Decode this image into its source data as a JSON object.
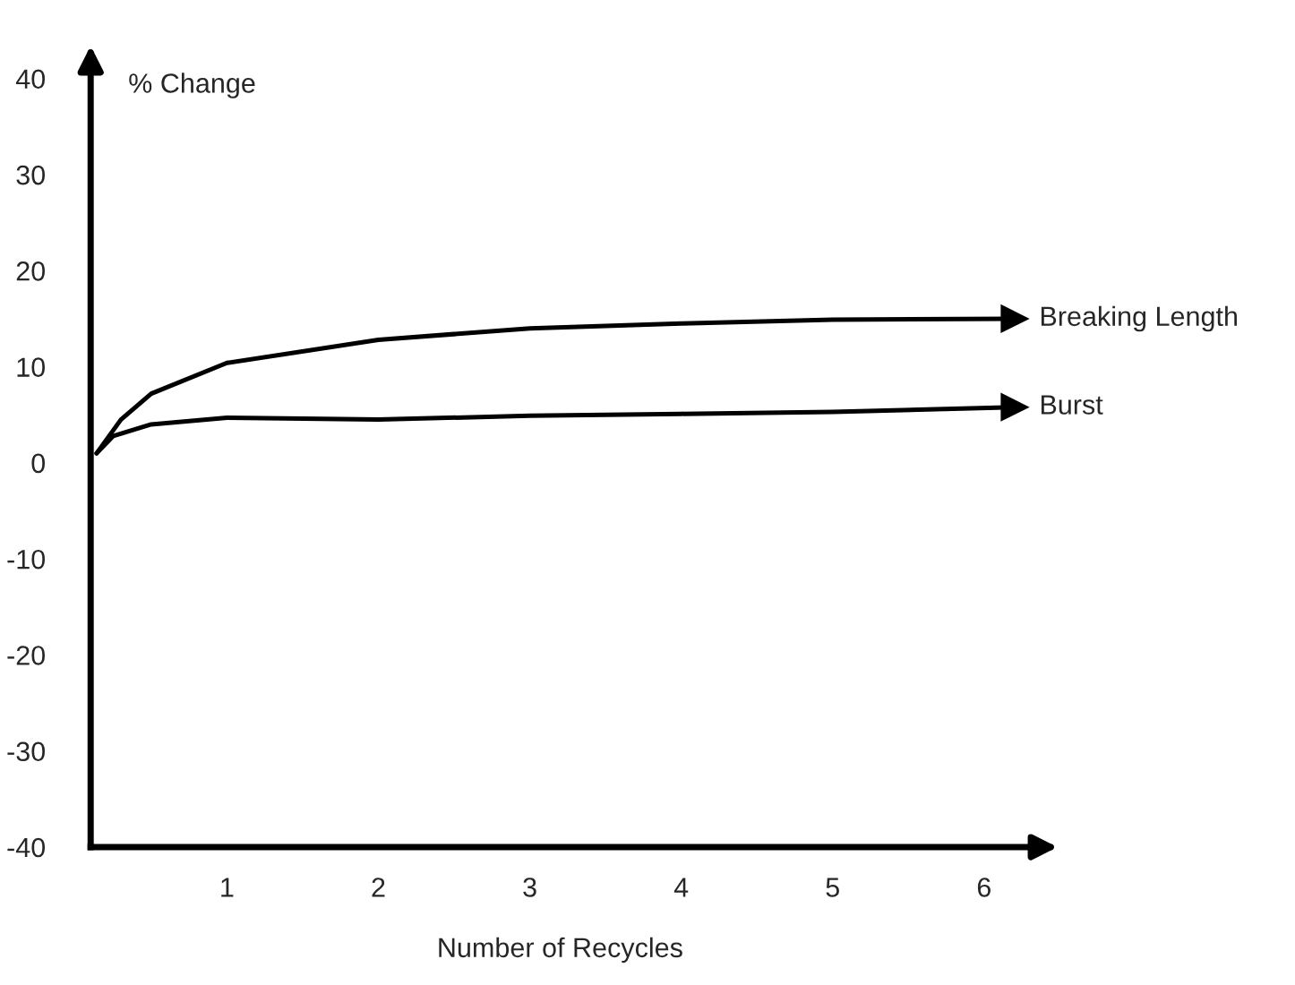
{
  "chart_data": {
    "type": "line",
    "xlabel": "Number of Recycles",
    "ylabel": "% Change",
    "xlim": [
      0.1,
      6.3
    ],
    "ylim": [
      -40,
      41
    ],
    "xticks": [
      1,
      2,
      3,
      4,
      5,
      6
    ],
    "yticks": [
      -40,
      -30,
      -20,
      -10,
      0,
      10,
      20,
      30,
      40
    ],
    "grid": false,
    "legend": false,
    "marker": "none",
    "line_style": "solid",
    "series": [
      {
        "name": "Breaking Length",
        "color": "#000000",
        "x": [
          0.14,
          0.3,
          0.5,
          1,
          2,
          3,
          4,
          5,
          6.2
        ],
        "values": [
          1,
          4.5,
          7.2,
          10.4,
          12.8,
          14,
          14.5,
          14.9,
          15
        ]
      },
      {
        "name": "Burst",
        "color": "#000000",
        "x": [
          0.14,
          0.25,
          0.5,
          1,
          2,
          3,
          4,
          5,
          6.2
        ],
        "values": [
          1,
          2.8,
          4.0,
          4.7,
          4.5,
          4.9,
          5.1,
          5.3,
          5.8
        ]
      }
    ]
  }
}
